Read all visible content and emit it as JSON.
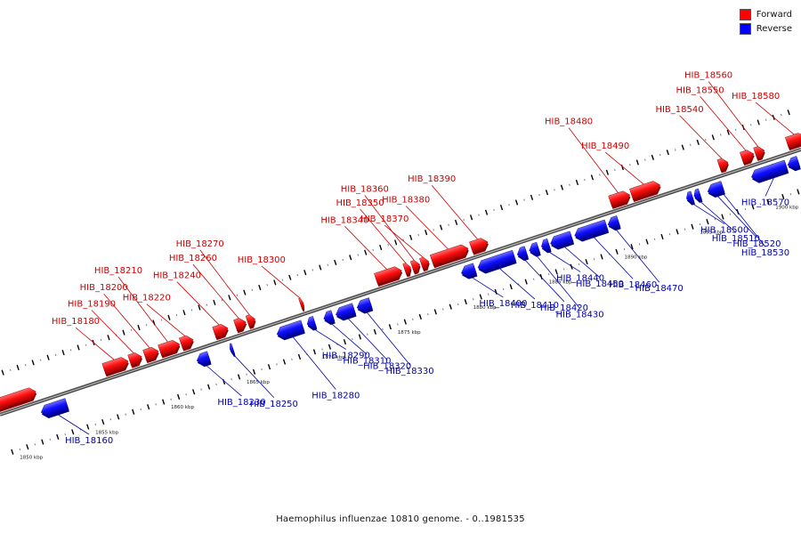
{
  "legend": {
    "forward_label": "Forward",
    "reverse_label": "Reverse",
    "forward_color": "#ff0000",
    "reverse_color": "#0000ff"
  },
  "caption": "Haemophilus influenzae 10810 genome. - 0..1981535",
  "axis": {
    "start_kbp": 1849,
    "end_kbp": 1902,
    "tick_labels": [
      {
        "kbp": 1850,
        "label": "1850 kbp"
      },
      {
        "kbp": 1855,
        "label": "1855 kbp"
      },
      {
        "kbp": 1860,
        "label": "1860 kbp"
      },
      {
        "kbp": 1865,
        "label": "1865 kbp"
      },
      {
        "kbp": 1870,
        "label": "1870 kbp"
      },
      {
        "kbp": 1875,
        "label": "1875 kbp"
      },
      {
        "kbp": 1880,
        "label": "1880 kbp"
      },
      {
        "kbp": 1885,
        "label": "1885 kbp"
      },
      {
        "kbp": 1890,
        "label": "1890 kbp"
      },
      {
        "kbp": 1895,
        "label": "1895 kbp"
      },
      {
        "kbp": 1900,
        "label": "1900 kbp"
      }
    ]
  },
  "forward_genes": [
    {
      "name": "",
      "start": 1849.0,
      "end": 1851.6
    },
    {
      "name": "HIB_18180",
      "start": 1856.1,
      "end": 1857.7
    },
    {
      "name": "HIB_18190",
      "start": 1857.8,
      "end": 1858.6
    },
    {
      "name": "HIB_18200",
      "start": 1858.8,
      "end": 1859.7
    },
    {
      "name": "HIB_18210",
      "start": 1859.8,
      "end": 1861.1
    },
    {
      "name": "HIB_18220",
      "start": 1861.2,
      "end": 1862.0
    },
    {
      "name": "HIB_18240",
      "start": 1863.4,
      "end": 1864.3
    },
    {
      "name": "HIB_18260",
      "start": 1864.8,
      "end": 1865.5
    },
    {
      "name": "HIB_18270",
      "start": 1865.6,
      "end": 1866.1
    },
    {
      "name": "HIB_18300",
      "start": 1869.1,
      "end": 1869.3
    },
    {
      "name": "HIB_18340",
      "start": 1874.1,
      "end": 1875.8
    },
    {
      "name": "HIB_18350",
      "start": 1876.0,
      "end": 1876.4
    },
    {
      "name": "HIB_18360",
      "start": 1876.5,
      "end": 1877.0
    },
    {
      "name": "HIB_18370",
      "start": 1877.1,
      "end": 1877.6
    },
    {
      "name": "HIB_18380",
      "start": 1877.8,
      "end": 1880.2
    },
    {
      "name": "HIB_18390",
      "start": 1880.4,
      "end": 1881.5
    },
    {
      "name": "HIB_18480",
      "start": 1889.6,
      "end": 1890.9
    },
    {
      "name": "HIB_18490",
      "start": 1891.0,
      "end": 1892.9
    },
    {
      "name": "HIB_18540",
      "start": 1896.8,
      "end": 1897.4
    },
    {
      "name": "HIB_18550",
      "start": 1898.3,
      "end": 1899.1
    },
    {
      "name": "HIB_18560",
      "start": 1899.2,
      "end": 1899.8
    },
    {
      "name": "HIB_18580",
      "start": 1901.3,
      "end": 1902.5
    }
  ],
  "reverse_genes": [
    {
      "name": "HIB_18160",
      "start": 1851.5,
      "end": 1853.2
    },
    {
      "name": "HIB_18230",
      "start": 1861.8,
      "end": 1862.6
    },
    {
      "name": "HIB_18250",
      "start": 1864.0,
      "end": 1864.2
    },
    {
      "name": "HIB_18280",
      "start": 1867.1,
      "end": 1868.8
    },
    {
      "name": "HIB_18290",
      "start": 1869.1,
      "end": 1869.6
    },
    {
      "name": "HIB_18310",
      "start": 1870.2,
      "end": 1870.8
    },
    {
      "name": "HIB_18320",
      "start": 1871.0,
      "end": 1872.2
    },
    {
      "name": "HIB_18330",
      "start": 1872.4,
      "end": 1873.3
    },
    {
      "name": "HIB_18400",
      "start": 1879.3,
      "end": 1880.2
    },
    {
      "name": "HIB_18410",
      "start": 1880.4,
      "end": 1882.8
    },
    {
      "name": "HIB_18420",
      "start": 1883.0,
      "end": 1883.6
    },
    {
      "name": "HIB_18430",
      "start": 1883.8,
      "end": 1884.4
    },
    {
      "name": "HIB_18440",
      "start": 1884.6,
      "end": 1885.1
    },
    {
      "name": "HIB_18450",
      "start": 1885.2,
      "end": 1886.6
    },
    {
      "name": "HIB_18460",
      "start": 1886.8,
      "end": 1888.9
    },
    {
      "name": "HIB_18470",
      "start": 1889.0,
      "end": 1889.7
    },
    {
      "name": "HIB_18500",
      "start": 1894.2,
      "end": 1894.6
    },
    {
      "name": "HIB_18510",
      "start": 1894.7,
      "end": 1895.1
    },
    {
      "name": "",
      "start": 1895.6,
      "end": 1896.6
    },
    {
      "name": "HIB_18520",
      "start": 1896.0,
      "end": 1896.1
    },
    {
      "name": "HIB_18530",
      "start": 1896.4,
      "end": 1896.5
    },
    {
      "name": "HIB_18570",
      "start": 1899.9,
      "end": 1900.0
    },
    {
      "name": "",
      "start": 1898.5,
      "end": 1900.8
    },
    {
      "name": "",
      "start": 1900.9,
      "end": 1901.6
    }
  ]
}
